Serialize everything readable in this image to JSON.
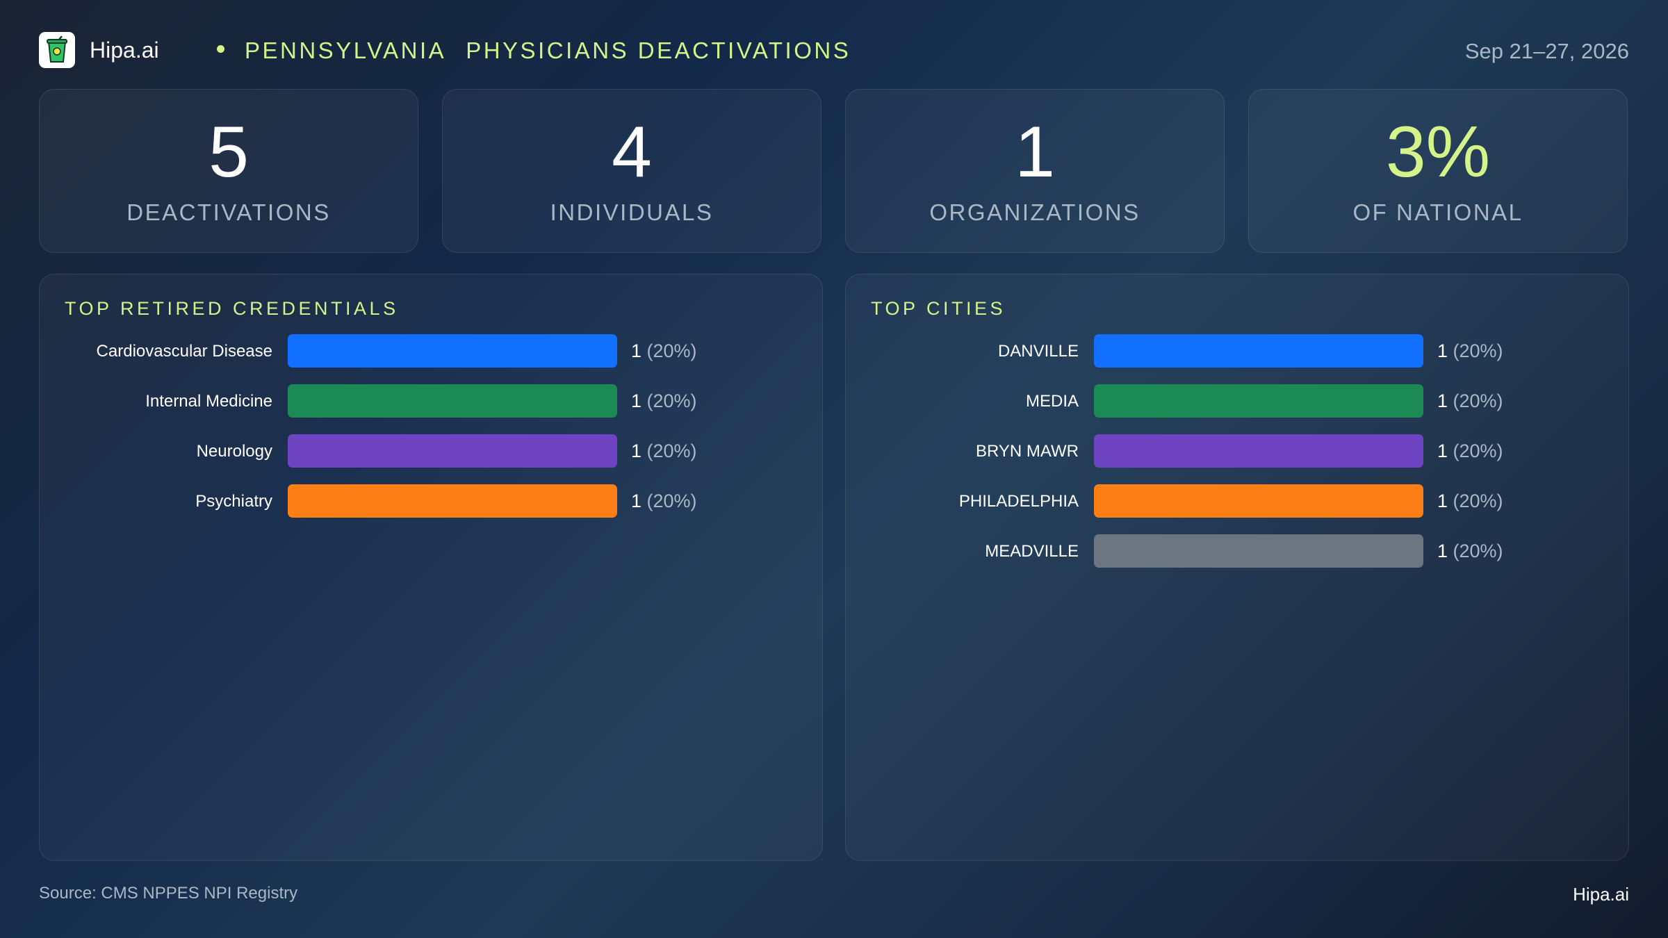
{
  "header": {
    "brand": "Hipa.ai",
    "title_part1": "PENNSYLVANIA",
    "title_part2": "PHYSICIANS DEACTIVATIONS",
    "date_range": "Sep 21–27, 2026",
    "logo_icon": "cup-icon"
  },
  "kpis": [
    {
      "value": "5",
      "label": "DEACTIVATIONS"
    },
    {
      "value": "4",
      "label": "INDIVIDUALS"
    },
    {
      "value": "1",
      "label": "ORGANIZATIONS"
    },
    {
      "value": "3%",
      "label": "OF NATIONAL"
    }
  ],
  "colors": {
    "accent": "#d4f48a",
    "bar_blue": "#1170ff",
    "bar_green": "#1c8a55",
    "bar_purple": "#6f44c3",
    "bar_orange": "#ff7f17",
    "bar_gray": "#6c7580"
  },
  "chart_data": [
    {
      "type": "bar",
      "orientation": "horizontal",
      "title": "TOP RETIRED CREDENTIALS",
      "categories": [
        "Cardiovascular Disease",
        "Internal Medicine",
        "Neurology",
        "Psychiatry"
      ],
      "values": [
        1,
        1,
        1,
        1
      ],
      "percent_labels": [
        "(20%)",
        "(20%)",
        "(20%)",
        "(20%)"
      ],
      "colors": [
        "#1170ff",
        "#1c8a55",
        "#6f44c3",
        "#ff7f17"
      ],
      "xlim": [
        0,
        1
      ]
    },
    {
      "type": "bar",
      "orientation": "horizontal",
      "title": "TOP CITIES",
      "categories": [
        "DANVILLE",
        "MEDIA",
        "BRYN MAWR",
        "PHILADELPHIA",
        "MEADVILLE"
      ],
      "values": [
        1,
        1,
        1,
        1,
        1
      ],
      "percent_labels": [
        "(20%)",
        "(20%)",
        "(20%)",
        "(20%)",
        "(20%)"
      ],
      "colors": [
        "#1170ff",
        "#1c8a55",
        "#6f44c3",
        "#ff7f17",
        "#6c7580"
      ],
      "xlim": [
        0,
        1
      ]
    }
  ],
  "footer": {
    "source": "Source: CMS NPPES NPI Registry",
    "brand": "Hipa.ai"
  }
}
